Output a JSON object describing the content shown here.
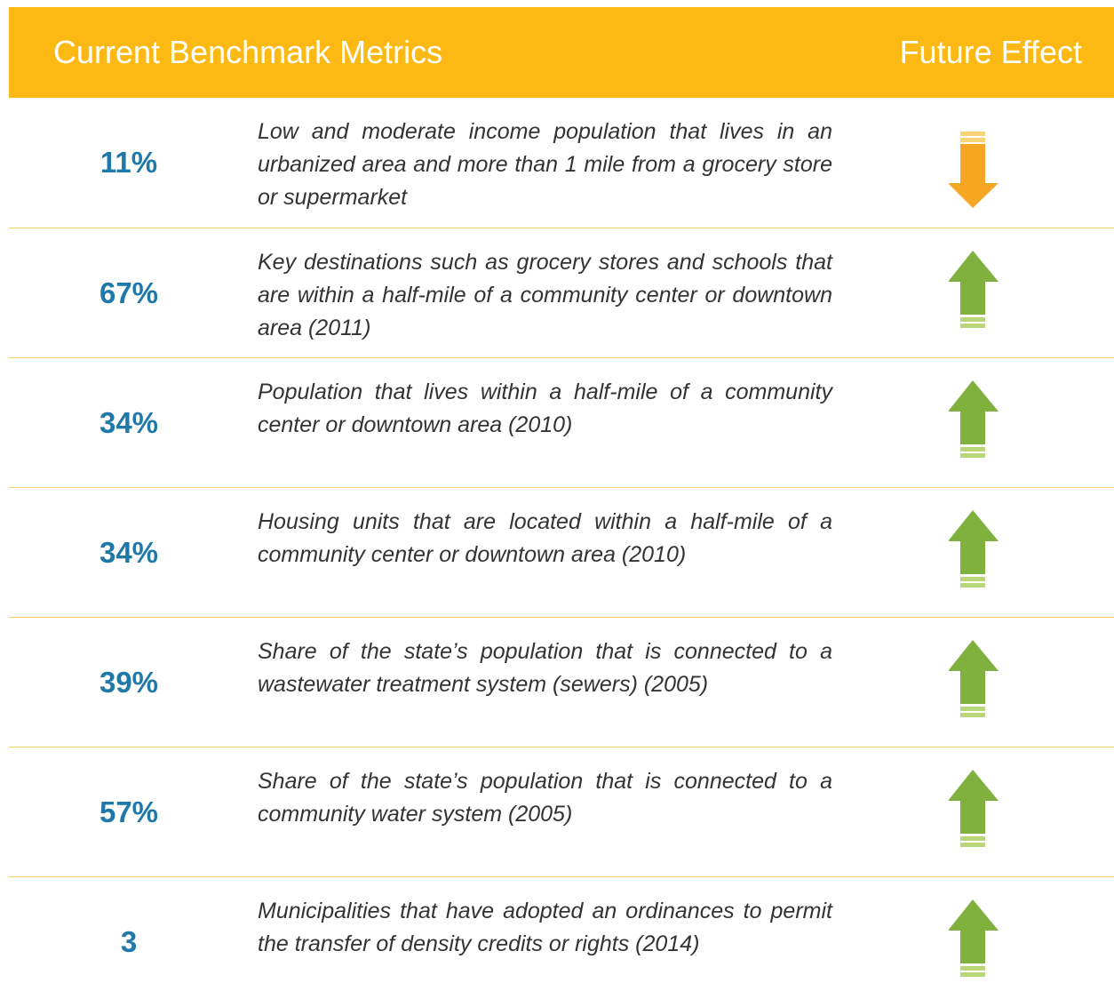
{
  "header": {
    "left": "Current Benchmark Metrics",
    "right": "Future Effect"
  },
  "rows": [
    {
      "metric": "11%",
      "description": "Low and moderate income population that lives in an urbanized area and more than 1 mile from a grocery store or supermarket",
      "direction": "down"
    },
    {
      "metric": "67%",
      "description": "Key destinations such as grocery stores and schools that are within a half-mile of a community center or downtown area (2011)",
      "direction": "up"
    },
    {
      "metric": "34%",
      "description": "Population that lives within a half-mile of a community center or downtown area (2010)",
      "direction": "up"
    },
    {
      "metric": "34%",
      "description": "Housing units that are located within a half-mile of a community center or downtown area (2010)",
      "direction": "up"
    },
    {
      "metric": "39%",
      "description": "Share of the state’s population that is connected to a wastewater treatment system (sewers) (2005)",
      "direction": "up"
    },
    {
      "metric": "57%",
      "description": "Share of the state’s population that is connected to a community water system (2005)",
      "direction": "up"
    },
    {
      "metric": "3",
      "description": "Municipalities that have adopted an ordinances to permit the transfer of density credits or rights (2014)",
      "direction": "up"
    }
  ]
}
